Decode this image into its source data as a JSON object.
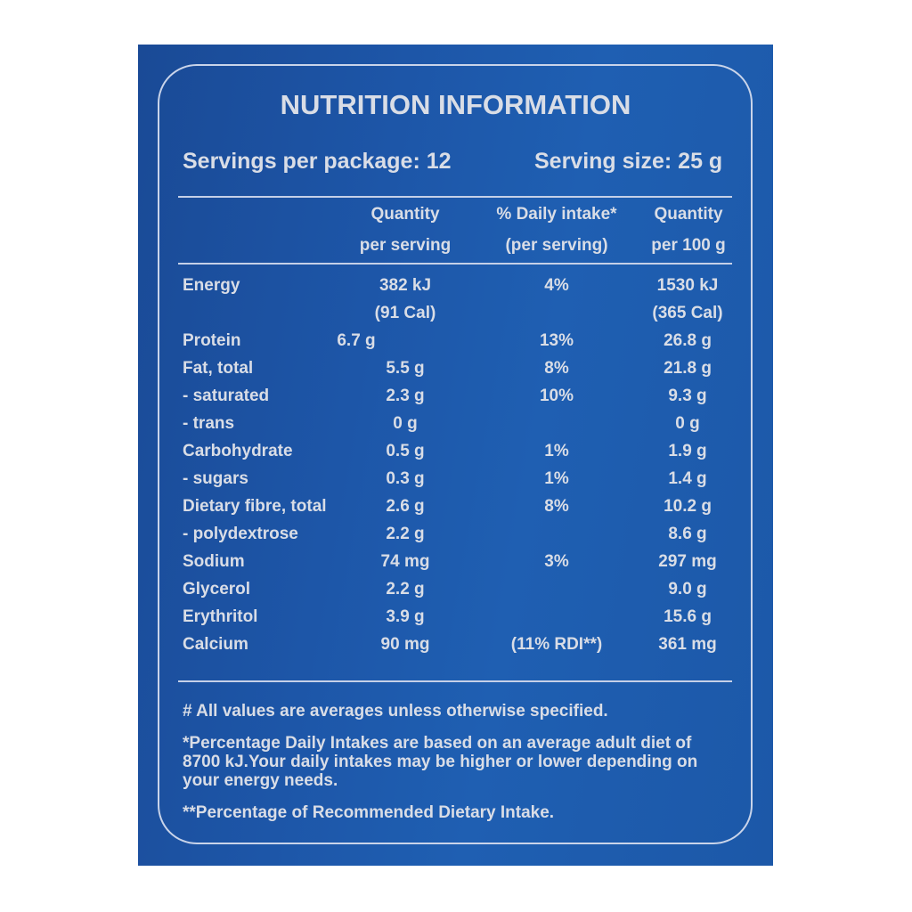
{
  "title": "NUTRITION INFORMATION",
  "servings_per_package": "Servings per package: 12",
  "serving_size": "Serving size: 25 g",
  "headers": {
    "col1": [
      "Quantity",
      "per serving"
    ],
    "col2": [
      "% Daily intake*",
      "(per serving)"
    ],
    "col3": [
      "Quantity",
      "per 100 g"
    ]
  },
  "rows": [
    {
      "label": "Energy",
      "per_serving": "382 kJ",
      "daily": "4%",
      "per_100g": "1530 kJ"
    },
    {
      "label": "",
      "per_serving": "(91 Cal)",
      "daily": "",
      "per_100g": "(365 Cal)"
    },
    {
      "label": "Protein",
      "per_serving": "6.7 g",
      "daily": "13%",
      "per_100g": "26.8 g"
    },
    {
      "label": "Fat, total",
      "per_serving": "5.5 g",
      "daily": "8%",
      "per_100g": "21.8 g"
    },
    {
      "label": " - saturated",
      "per_serving": "2.3 g",
      "daily": "10%",
      "per_100g": "9.3 g"
    },
    {
      "label": " - trans",
      "per_serving": "0 g",
      "daily": "",
      "per_100g": "0 g"
    },
    {
      "label": "Carbohydrate",
      "per_serving": "0.5 g",
      "daily": "1%",
      "per_100g": "1.9 g"
    },
    {
      "label": " - sugars",
      "per_serving": "0.3 g",
      "daily": "1%",
      "per_100g": "1.4 g"
    },
    {
      "label": "Dietary fibre, total",
      "per_serving": "2.6 g",
      "daily": "8%",
      "per_100g": "10.2 g"
    },
    {
      "label": " - polydextrose",
      "per_serving": "2.2 g",
      "daily": "",
      "per_100g": "8.6 g"
    },
    {
      "label": "Sodium",
      "per_serving": "74 mg",
      "daily": "3%",
      "per_100g": "297 mg"
    },
    {
      "label": "Glycerol",
      "per_serving": "2.2 g",
      "daily": "",
      "per_100g": "9.0 g"
    },
    {
      "label": "Erythritol",
      "per_serving": "3.9 g",
      "daily": "",
      "per_100g": "15.6 g"
    },
    {
      "label": "Calcium",
      "per_serving": "90 mg",
      "daily": "(11% RDI**)",
      "per_100g": "361 mg"
    }
  ],
  "footnotes": [
    "# All values are averages unless otherwise specified.",
    "*Percentage Daily Intakes are based on an average adult diet of 8700 kJ.Your daily intakes may be higher or lower depending on your energy needs.",
    "**Percentage of Recommended Dietary Intake."
  ],
  "colors": {
    "background": "#1d56a8",
    "text": "#d9dde6",
    "border": "#c9d4ea"
  }
}
